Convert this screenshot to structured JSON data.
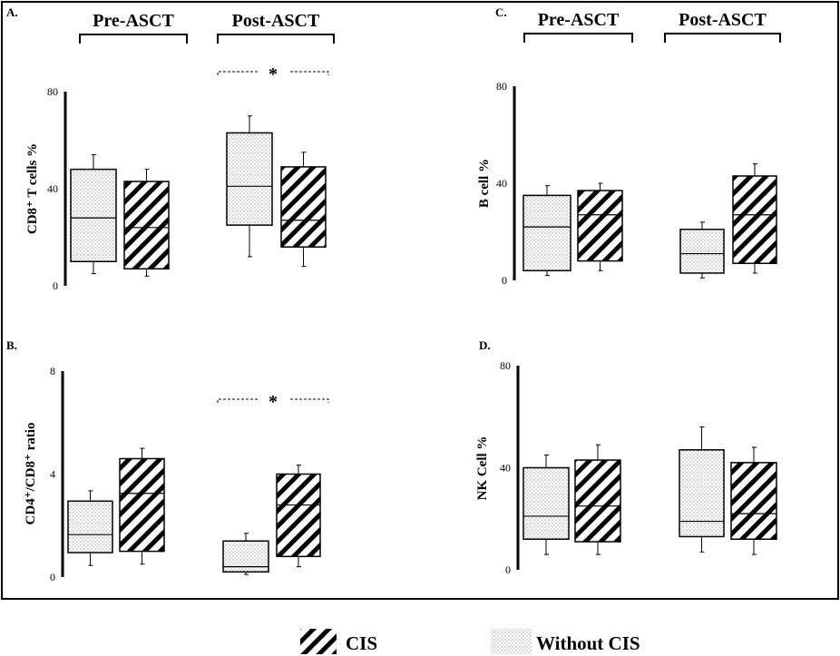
{
  "chart_data": [
    {
      "type": "box",
      "panel": "A.",
      "ylabel": "CD8⁺ T cells %",
      "ylim": [
        0,
        80
      ],
      "yticks": [
        "0",
        "40",
        "80"
      ],
      "groups": [
        "Pre-ASCT",
        "Post-ASCT"
      ],
      "significance": [
        {
          "group": "Post-ASCT",
          "label": "*"
        }
      ],
      "series": [
        {
          "name": "Without CIS",
          "boxes": [
            {
              "group": "Pre-ASCT",
              "min": 5,
              "q1": 10,
              "median": 28,
              "q3": 48,
              "max": 54
            },
            {
              "group": "Post-ASCT",
              "min": 12,
              "q1": 25,
              "median": 41,
              "q3": 63,
              "max": 70
            }
          ]
        },
        {
          "name": "CIS",
          "boxes": [
            {
              "group": "Pre-ASCT",
              "min": 4,
              "q1": 7,
              "median": 24,
              "q3": 43,
              "max": 48
            },
            {
              "group": "Post-ASCT",
              "min": 8,
              "q1": 16,
              "median": 27,
              "q3": 49,
              "max": 55
            }
          ]
        }
      ]
    },
    {
      "type": "box",
      "panel": "B.",
      "ylabel": "CD4⁺/CD8⁺ ratio",
      "ylim": [
        0,
        8
      ],
      "yticks": [
        "0",
        "4",
        "8"
      ],
      "groups": [
        "Pre-ASCT",
        "Post-ASCT"
      ],
      "significance": [
        {
          "group": "Post-ASCT",
          "label": "*"
        }
      ],
      "series": [
        {
          "name": "Without CIS",
          "boxes": [
            {
              "group": "Pre-ASCT",
              "min": 0.45,
              "q1": 0.95,
              "median": 1.65,
              "q3": 2.95,
              "max": 3.35
            },
            {
              "group": "Post-ASCT",
              "min": 0.1,
              "q1": 0.2,
              "median": 0.4,
              "q3": 1.4,
              "max": 1.7
            }
          ]
        },
        {
          "name": "CIS",
          "boxes": [
            {
              "group": "Pre-ASCT",
              "min": 0.5,
              "q1": 1.0,
              "median": 3.25,
              "q3": 4.6,
              "max": 5.0
            },
            {
              "group": "Post-ASCT",
              "min": 0.4,
              "q1": 0.8,
              "median": 2.8,
              "q3": 4.0,
              "max": 4.35
            }
          ]
        }
      ]
    },
    {
      "type": "box",
      "panel": "C.",
      "ylabel": "B cell %",
      "ylim": [
        0,
        80
      ],
      "yticks": [
        "0",
        "40",
        "80"
      ],
      "groups": [
        "Pre-ASCT",
        "Post-ASCT"
      ],
      "significance": [],
      "series": [
        {
          "name": "Without CIS",
          "boxes": [
            {
              "group": "Pre-ASCT",
              "min": 2,
              "q1": 4,
              "median": 22,
              "q3": 35,
              "max": 39
            },
            {
              "group": "Post-ASCT",
              "min": 1,
              "q1": 3,
              "median": 11,
              "q3": 21,
              "max": 24
            }
          ]
        },
        {
          "name": "CIS",
          "boxes": [
            {
              "group": "Pre-ASCT",
              "min": 4,
              "q1": 8,
              "median": 27,
              "q3": 37,
              "max": 40
            },
            {
              "group": "Post-ASCT",
              "min": 3,
              "q1": 7,
              "median": 27,
              "q3": 43,
              "max": 48
            }
          ]
        }
      ]
    },
    {
      "type": "box",
      "panel": "D.",
      "ylabel": "NK Cell %",
      "ylim": [
        0,
        80
      ],
      "yticks": [
        "0",
        "40",
        "80"
      ],
      "groups": [
        "Pre-ASCT",
        "Post-ASCT"
      ],
      "significance": [],
      "series": [
        {
          "name": "Without CIS",
          "boxes": [
            {
              "group": "Pre-ASCT",
              "min": 6,
              "q1": 12,
              "median": 21,
              "q3": 40,
              "max": 45
            },
            {
              "group": "Post-ASCT",
              "min": 7,
              "q1": 13,
              "median": 19,
              "q3": 47,
              "max": 56
            }
          ]
        },
        {
          "name": "CIS",
          "boxes": [
            {
              "group": "Pre-ASCT",
              "min": 6,
              "q1": 11,
              "median": 25,
              "q3": 43,
              "max": 49
            },
            {
              "group": "Post-ASCT",
              "min": 6,
              "q1": 12,
              "median": 22,
              "q3": 42,
              "max": 48
            }
          ]
        }
      ]
    }
  ],
  "legend": {
    "placement": "bottom",
    "items": [
      {
        "label": "CIS",
        "pattern": "diagonal-stripes"
      },
      {
        "label": "Without CIS",
        "pattern": "dots"
      }
    ]
  },
  "colors": {
    "ink": "#000000",
    "dots": "#6e6e6e",
    "background": "#ffffff"
  }
}
